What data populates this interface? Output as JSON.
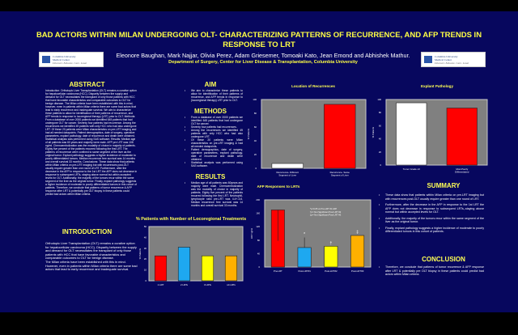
{
  "title": "BAD ACTORS WITHIN MILAN UNDERGOING OLT- CHARACTERIZING PATTERNS OF RECURRENCE, AND AFP TRENDS IN RESPONSE TO LRT",
  "authors": "Eleonore Baughan, Mark Najjar, Olivia Perez, Adam Griesemer, Tomoaki Kato, Jean Emond and Abhishek Mathur.",
  "department": "Department of Surgery, Center for Liver Disease & Transplantation, Columbia University",
  "logo": {
    "line1": "Columbia University",
    "line2": "Medical Center",
    "tagline": "Discover. Educate. Care. Lead."
  },
  "abstract": {
    "heading": "ABSTRACT",
    "text": "Introduction: Orthotopic Liver Transplantation (OLT) remains a curative option for hepatocellular carcinoma (HCC). Disparity between the supply and demand for OLT necessitates the transplant of only those patients with HCC that have favorable characteristics and comparable outcomes to OLT for benign disease. The Milan criteria have been established with this in mind, however, even in patients within Milan criteria there are some bad actors that lead to early recurrence and inadequate survival. We aim to characterize these patients to allow for identification of their patterns of recurrence, and AFP trends in response to locoregional therapy (LRT) prior to OLT. Methods: From a database of over 2000 patients we identified 645 patients that had undergone OLT for cancer. Seventy four patients had recurrence. Among the recurrences we identified 49 patients with only HCC who had also undergone LRT. Of these 20 patients were Milan characteristics on pre-LRT imaging and had all needed datapoints. Patient demographics, date of surgery, operative parameters, explant pathology, date of recurrence and death were obtained. Statistical analysis was performed using SAS software. Results: Median age of all patients was 60 years and majority were male. AFP pre LRT was 108 ng/ml. Chemoembolization was the modality of choice in majority of patients. Eighty five percent of the patients recurred following the first LRT. The patterns of recurrence were confined to same segment of the liver as the original tumor. Explant pathology suggests a higher incidence of moderate to poorly differentiated tumors. Median recurrence free survival was 14 months and overall survival 33 months. Conclusions: These data show that patients within Milan criteria on pre-LRT imaging but with recurrences post-OLT usually require greater than one round of LRT. Furthermore, after the decrease in the AFP in response to the 1st LRT the AFP does not decrease in response to subsequent LRTs, staying above normal but within accepted levels for OLT. Additionally, the majority of the tumors recur within the same segment of the liver as the original tumor. Finally, explant pathology suggests a higher incidence of moderate to poorly differentiated tumors in this cohort of patients. Therefore, we conclude that patterns of tumor recurrence & AFP response after LRT & potentially pre OLT biopsy in these patients could predict bad actors within Milan criteria."
  },
  "introduction": {
    "heading": "INTRODUCTION",
    "paragraphs": [
      "Orthotopic Liver Transplantation (OLT) remains a curative option for hepatocellular carcinoma (HCC). Disparity between the supply and demand for OLT necessitates the transplant of only those patients with HCC that have favorable characteristics and comparable outcomes to OLT for benign disease.",
      "The Milan criteria have been established with this in mind. However, even in patients within Milan criteria there are some bad actors that lead to early recurrence and inadequate survival."
    ]
  },
  "aim": {
    "heading": "AIM",
    "items": [
      "We aim to characterize these patients to allow for identification of their patterns of recurrence, and AFP trends in response to (locoregional therapy) LRT prior to OLT."
    ]
  },
  "methods": {
    "heading": "METHODS",
    "items": [
      "From a database of over 2000 patients we identified 645 patients that had undergone OLT for cancer.",
      "Seventy four patients had recurrences.",
      "Among the recurrences we identified 49 patients with only HCC who had also undergone LRT.",
      "Of these 20 patients were Milan characteristics on pre-LRT imaging & had all needed datapoints.",
      "Patient demographics, date of surgery, operative parameters, explant pathology, date of recurrence and death were obtained.",
      "Statistical analysis was performed using SAS software."
    ]
  },
  "results": {
    "heading": "RESULTS",
    "items": [
      "Median age of all patients was 60years and majority were male. Chemoembolization was the modality of choice in majority of patients. Eighty five percent of the patients recurred following the first LRT. Neutrophil-lymphocyte ratio pre-LRT was 4.4+-3.6. Median recurrence free survival was 14 months and overall survival 33 months."
    ]
  },
  "summary": {
    "heading": "SUMMARY",
    "items": [
      "These data show that patients within Milan criteria on pre-LRT imaging but with recurrences post-OLT usually require greater than one round of LRT.",
      "Furthermore, after the decrease in the AFP in response to the 1st LRT the AFP does not decrease in response to subsequent LRTs,-staying above normal but within accepted levels for OLT.",
      "Additionally, the majority of the tumors recur within the same segment of the liver as the original tumor.",
      "Finally, explant pathology suggests a higher incidence of moderate to poorly differentiated tumors in this cohort of patients."
    ]
  },
  "conclusion": {
    "heading": "CONCLUSION",
    "items": [
      "Therefore, we conclude that patterns of tumor recurrence & AFP response after LRT & potentially pre OLT biopsy in these patients could predict bad actors within Milan criteria."
    ]
  },
  "chart_data": [
    {
      "id": "loc",
      "type": "bar",
      "title": "Location of Recurrences",
      "ylabel": "% Patients",
      "ylim": [
        0,
        100
      ],
      "yticks": [
        0,
        20,
        40,
        60,
        80,
        100
      ],
      "categories": [
        "Recurrence- Different Segment of Liver",
        "Recurrence- Same Segment of Liver"
      ],
      "values": [
        7,
        93
      ],
      "colors": [
        "#ffffff",
        "#ff0000"
      ]
    },
    {
      "id": "exp",
      "type": "bar",
      "title": "Explant Pathology",
      "ylabel": "% Patients",
      "ylim": [
        0,
        100
      ],
      "yticks": [
        0,
        20,
        40,
        60,
        80,
        100
      ],
      "categories": [
        "Tumor Grade ≤3",
        "Mod-Poorly Differentiated"
      ],
      "values": [
        95,
        87
      ],
      "colors": [
        "#ffffff",
        "#ff0000"
      ]
    },
    {
      "id": "lrt",
      "type": "bar",
      "title": "% Patients with Number of Locoregional Treatments",
      "ylabel": "% Patients",
      "ylim": [
        0,
        50
      ],
      "yticks": [
        0,
        10,
        20,
        30,
        40,
        50
      ],
      "categories": [
        "1 LRT",
        "2 LRTs",
        "3 LRTs",
        "≥4 LRTs"
      ],
      "values": [
        23,
        31,
        23,
        23
      ],
      "colors": [
        "#ff0000",
        "#1ea8f0",
        "#ffff00",
        "#ffb000"
      ]
    },
    {
      "id": "afp",
      "type": "bar",
      "title": "AFP Responses to LRTs",
      "ylabel": "AFP ng/ml",
      "ylim": [
        0,
        200
      ],
      "yticks": [
        0,
        40,
        80,
        120,
        160,
        200
      ],
      "categories": [
        "Pre-LRT",
        "Post-LRT#1",
        "Post-LRT#2",
        "Post-LRT#3"
      ],
      "values": [
        170,
        58,
        62,
        94
      ],
      "markers": [
        "",
        "*",
        "†",
        "‡"
      ],
      "colors": [
        "#ff0000",
        "#1ea8f0",
        "#ffff00",
        "#ffb000"
      ],
      "legend": [
        "*p<0.05 vs Pre-LRT #1 AFP",
        "†p= Not Significant Post LRT #2",
        "‡p= Not Significant Post LRT #3"
      ]
    }
  ]
}
